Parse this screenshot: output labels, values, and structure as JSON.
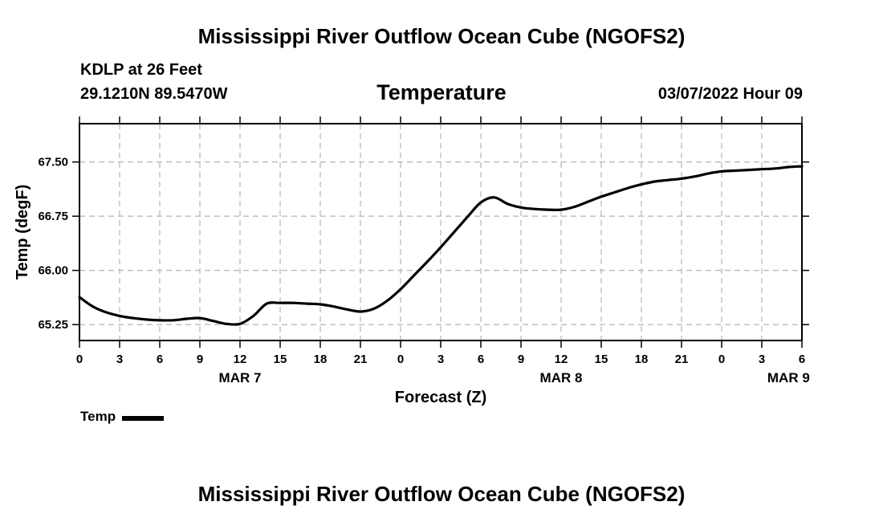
{
  "header": {
    "title": "Mississippi River Outflow Ocean Cube (NGOFS2)",
    "station": "KDLP at 26 Feet",
    "coords": "29.1210N  89.5470W",
    "chart_title": "Temperature",
    "datetime": "03/07/2022 Hour 09"
  },
  "footer": {
    "title": "Mississippi River Outflow Ocean Cube (NGOFS2)"
  },
  "legend": {
    "label": "Temp"
  },
  "colors": {
    "line": "#000000",
    "grid": "#bbbbbb"
  },
  "chart_data": {
    "type": "line",
    "title": "Temperature",
    "xlabel": "Forecast (Z)",
    "ylabel": "Temp (degF)",
    "xlim": [
      0,
      54
    ],
    "ylim": [
      65.03,
      68.03
    ],
    "x_ticks": [
      {
        "x": 0,
        "label": "0"
      },
      {
        "x": 3,
        "label": "3"
      },
      {
        "x": 6,
        "label": "6"
      },
      {
        "x": 9,
        "label": "9"
      },
      {
        "x": 12,
        "label": "12"
      },
      {
        "x": 15,
        "label": "15"
      },
      {
        "x": 18,
        "label": "18"
      },
      {
        "x": 21,
        "label": "21"
      },
      {
        "x": 24,
        "label": "0"
      },
      {
        "x": 27,
        "label": "3"
      },
      {
        "x": 30,
        "label": "6"
      },
      {
        "x": 33,
        "label": "9"
      },
      {
        "x": 36,
        "label": "12"
      },
      {
        "x": 39,
        "label": "15"
      },
      {
        "x": 42,
        "label": "18"
      },
      {
        "x": 45,
        "label": "21"
      },
      {
        "x": 48,
        "label": "0"
      },
      {
        "x": 51,
        "label": "3"
      },
      {
        "x": 54,
        "label": "6"
      }
    ],
    "date_labels": [
      {
        "x": 12,
        "label": "MAR 7"
      },
      {
        "x": 36,
        "label": "MAR 8"
      },
      {
        "x": 53,
        "label": "MAR 9"
      }
    ],
    "y_ticks": [
      65.25,
      66.0,
      66.75,
      67.5
    ],
    "y_tick_labels": [
      "65.25",
      "66.00",
      "66.75",
      "67.50"
    ],
    "series": [
      {
        "name": "Temp",
        "x": [
          0,
          1,
          2,
          3,
          4,
          5,
          6,
          7,
          8,
          9,
          10,
          11,
          12,
          13,
          14,
          15,
          16,
          17,
          18,
          19,
          20,
          21,
          22,
          23,
          24,
          25,
          26,
          27,
          28,
          29,
          30,
          31,
          32,
          33,
          34,
          35,
          36,
          37,
          38,
          39,
          40,
          41,
          42,
          43,
          44,
          45,
          46,
          47,
          48,
          49,
          50,
          51,
          52,
          53,
          54
        ],
        "values": [
          65.63,
          65.5,
          65.42,
          65.37,
          65.34,
          65.32,
          65.31,
          65.31,
          65.33,
          65.34,
          65.3,
          65.26,
          65.26,
          65.37,
          65.54,
          65.55,
          65.55,
          65.54,
          65.53,
          65.5,
          65.46,
          65.43,
          65.47,
          65.58,
          65.74,
          65.93,
          66.12,
          66.32,
          66.53,
          66.74,
          66.94,
          67.01,
          66.92,
          66.87,
          66.85,
          66.84,
          66.84,
          66.88,
          66.95,
          67.02,
          67.08,
          67.14,
          67.19,
          67.23,
          67.25,
          67.27,
          67.3,
          67.34,
          67.37,
          67.38,
          67.39,
          67.4,
          67.41,
          67.43,
          67.44
        ]
      }
    ]
  }
}
